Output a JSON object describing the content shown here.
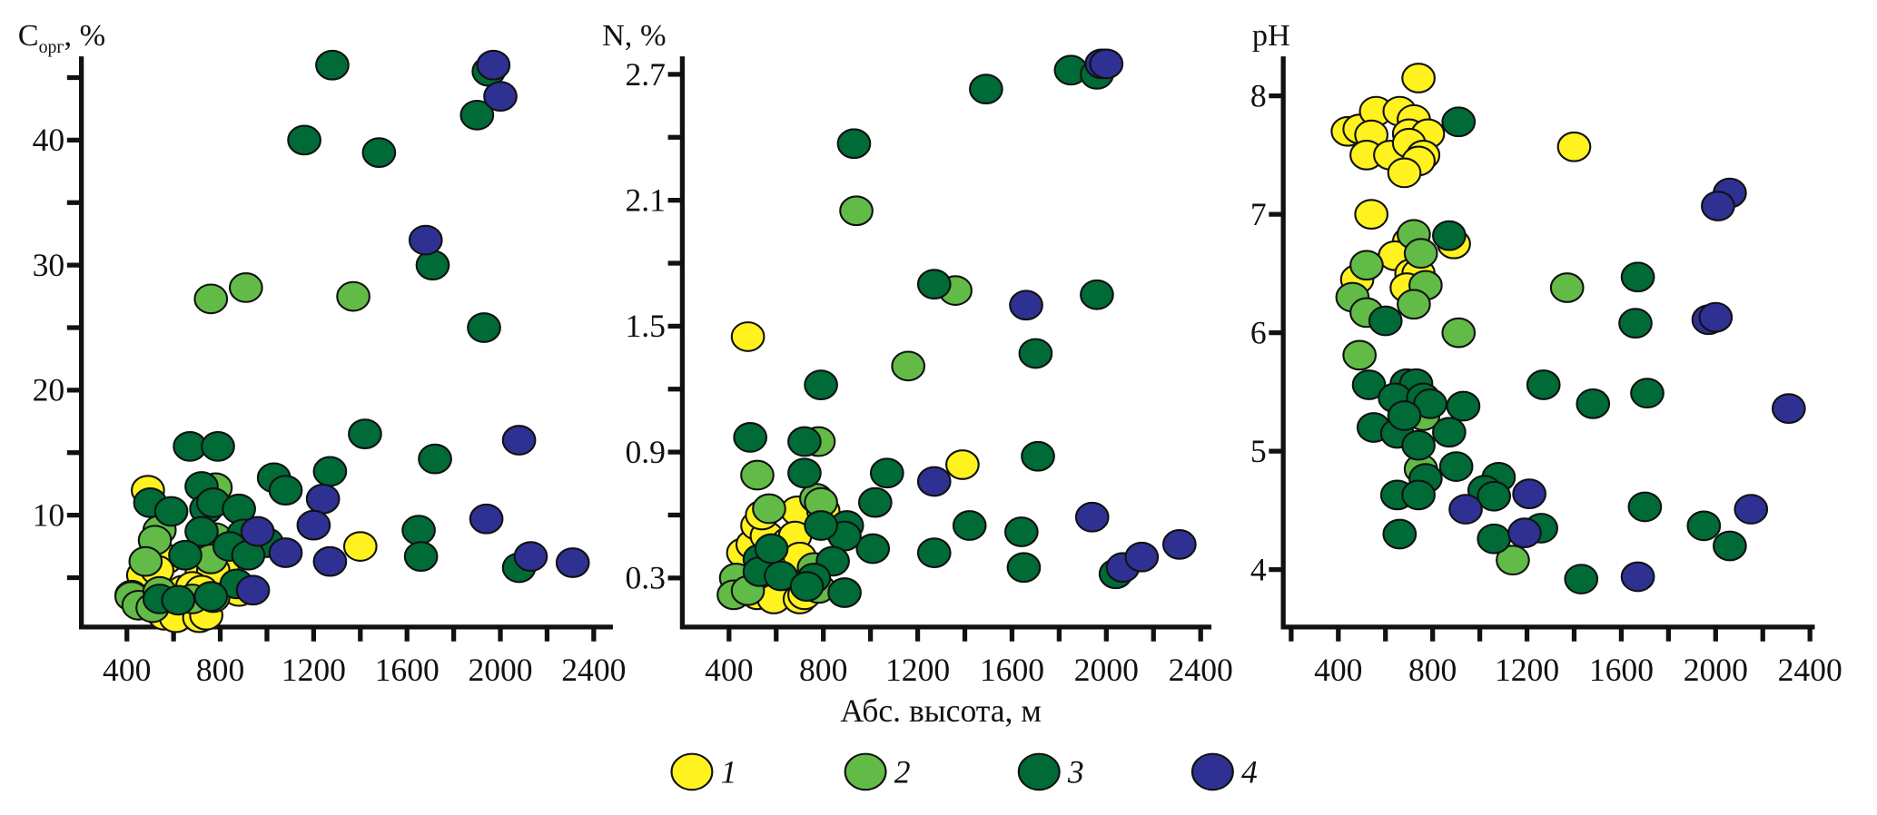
{
  "x_axis_label": "Абс. высота, м",
  "legend": [
    {
      "label": "1",
      "color": "#fff21f"
    },
    {
      "label": "2",
      "color": "#62bb47"
    },
    {
      "label": "3",
      "color": "#006b37"
    },
    {
      "label": "4",
      "color": "#2e3192"
    }
  ],
  "chart_data": [
    {
      "type": "scatter",
      "ylabel": "C",
      "ylabel_sub": "орг",
      "ylabel_suffix": ", %",
      "xticks": [
        400,
        800,
        1200,
        1600,
        2000,
        2400
      ],
      "yticks": [
        10,
        20,
        30,
        40
      ],
      "xlim": [
        200,
        2500
      ],
      "ylim": [
        -1,
        46
      ],
      "series": [
        {
          "name": "1",
          "color": "#fff21f",
          "points": [
            [
              490,
              12
            ],
            [
              1400,
              7.5
            ],
            [
              570,
              6.5
            ],
            [
              470,
              5.2
            ],
            [
              530,
              5.6
            ],
            [
              720,
              5.3
            ],
            [
              780,
              6
            ],
            [
              810,
              5.9
            ],
            [
              770,
              5.6
            ],
            [
              640,
              4
            ],
            [
              680,
              4.3
            ],
            [
              720,
              4
            ],
            [
              880,
              3.9
            ],
            [
              420,
              3.6
            ],
            [
              560,
              2
            ],
            [
              610,
              1.8
            ],
            [
              710,
              1.8
            ],
            [
              740,
              2
            ]
          ]
        },
        {
          "name": "2",
          "color": "#62bb47",
          "points": [
            [
              760,
              27.3
            ],
            [
              910,
              28.2
            ],
            [
              1370,
              27.5
            ],
            [
              780,
              12.2
            ],
            [
              540,
              8.8
            ],
            [
              520,
              8
            ],
            [
              780,
              8.2
            ],
            [
              720,
              7.1
            ],
            [
              480,
              6.3
            ],
            [
              760,
              6.5
            ],
            [
              420,
              3.5
            ],
            [
              450,
              2.8
            ],
            [
              510,
              2.6
            ],
            [
              680,
              3.3
            ],
            [
              770,
              3.4
            ],
            [
              540,
              3.9
            ]
          ]
        },
        {
          "name": "3",
          "color": "#006b37",
          "points": [
            [
              1280,
              46
            ],
            [
              1160,
              40
            ],
            [
              1480,
              39
            ],
            [
              1900,
              42
            ],
            [
              1950,
              45.5
            ],
            [
              1710,
              30
            ],
            [
              1930,
              25
            ],
            [
              1420,
              16.5
            ],
            [
              1720,
              14.5
            ],
            [
              670,
              15.5
            ],
            [
              790,
              15.5
            ],
            [
              1270,
              13.5
            ],
            [
              1030,
              13
            ],
            [
              1080,
              12
            ],
            [
              720,
              12.3
            ],
            [
              500,
              11
            ],
            [
              590,
              10.3
            ],
            [
              740,
              10.5
            ],
            [
              770,
              11
            ],
            [
              880,
              10.5
            ],
            [
              720,
              8.7
            ],
            [
              900,
              8.5
            ],
            [
              840,
              7.5
            ],
            [
              1000,
              7.8
            ],
            [
              920,
              6.8
            ],
            [
              650,
              6.8
            ],
            [
              1650,
              8.8
            ],
            [
              1660,
              6.7
            ],
            [
              2080,
              5.8
            ],
            [
              870,
              4.5
            ],
            [
              540,
              3.3
            ],
            [
              760,
              3.5
            ],
            [
              620,
              3.2
            ]
          ]
        },
        {
          "name": "4",
          "color": "#2e3192",
          "points": [
            [
              1970,
              46
            ],
            [
              2000,
              43.5
            ],
            [
              1680,
              32
            ],
            [
              2080,
              16
            ],
            [
              1240,
              11.3
            ],
            [
              1200,
              9.2
            ],
            [
              960,
              8.7
            ],
            [
              1080,
              7
            ],
            [
              1270,
              6.3
            ],
            [
              1940,
              9.7
            ],
            [
              2130,
              6.7
            ],
            [
              2310,
              6.2
            ],
            [
              940,
              4
            ]
          ]
        }
      ]
    },
    {
      "type": "scatter",
      "ylabel": "N, %",
      "xticks": [
        400,
        800,
        1200,
        1600,
        2000,
        2400
      ],
      "yticks": [
        0.3,
        0.9,
        1.5,
        2.1,
        2.7
      ],
      "xlim": [
        200,
        2500
      ],
      "ylim": [
        0.06,
        2.82
      ],
      "series": [
        {
          "name": "1",
          "color": "#fff21f",
          "points": [
            [
              480,
              1.45
            ],
            [
              1390,
              0.84
            ],
            [
              480,
              0.4
            ],
            [
              460,
              0.42
            ],
            [
              500,
              0.46
            ],
            [
              520,
              0.55
            ],
            [
              560,
              0.5
            ],
            [
              540,
              0.6
            ],
            [
              650,
              0.47
            ],
            [
              690,
              0.62
            ],
            [
              680,
              0.5
            ],
            [
              700,
              0.4
            ],
            [
              800,
              0.62
            ],
            [
              880,
              0.52
            ],
            [
              520,
              0.22
            ],
            [
              590,
              0.2
            ],
            [
              700,
              0.2
            ],
            [
              720,
              0.22
            ]
          ]
        },
        {
          "name": "2",
          "color": "#62bb47",
          "points": [
            [
              940,
              2.05
            ],
            [
              1360,
              1.67
            ],
            [
              1160,
              1.31
            ],
            [
              780,
              0.95
            ],
            [
              520,
              0.79
            ],
            [
              570,
              0.63
            ],
            [
              770,
              0.68
            ],
            [
              790,
              0.66
            ],
            [
              430,
              0.3
            ],
            [
              420,
              0.22
            ],
            [
              480,
              0.24
            ],
            [
              760,
              0.35
            ],
            [
              780,
              0.25
            ]
          ]
        },
        {
          "name": "3",
          "color": "#006b37",
          "points": [
            [
              930,
              2.37
            ],
            [
              1490,
              2.63
            ],
            [
              1850,
              2.72
            ],
            [
              1960,
              2.7
            ],
            [
              1270,
              1.7
            ],
            [
              1960,
              1.65
            ],
            [
              1700,
              1.37
            ],
            [
              790,
              1.22
            ],
            [
              490,
              0.97
            ],
            [
              720,
              0.95
            ],
            [
              720,
              0.8
            ],
            [
              1070,
              0.8
            ],
            [
              1710,
              0.88
            ],
            [
              1020,
              0.66
            ],
            [
              1420,
              0.55
            ],
            [
              1640,
              0.52
            ],
            [
              1270,
              0.42
            ],
            [
              1010,
              0.44
            ],
            [
              900,
              0.55
            ],
            [
              890,
              0.5
            ],
            [
              790,
              0.55
            ],
            [
              840,
              0.38
            ],
            [
              530,
              0.39
            ],
            [
              530,
              0.33
            ],
            [
              620,
              0.31
            ],
            [
              760,
              0.3
            ],
            [
              890,
              0.23
            ],
            [
              1650,
              0.35
            ],
            [
              2040,
              0.32
            ],
            [
              580,
              0.44
            ],
            [
              730,
              0.26
            ]
          ]
        },
        {
          "name": "4",
          "color": "#2e3192",
          "points": [
            [
              1980,
              2.75
            ],
            [
              2000,
              2.75
            ],
            [
              1660,
              1.6
            ],
            [
              1270,
              0.76
            ],
            [
              1940,
              0.59
            ],
            [
              2070,
              0.35
            ],
            [
              2150,
              0.4
            ],
            [
              2310,
              0.46
            ]
          ]
        }
      ]
    },
    {
      "type": "scatter",
      "ylabel": "pH",
      "xticks": [
        400,
        800,
        1200,
        1600,
        2000,
        2400
      ],
      "yticks": [
        4,
        5,
        6,
        7,
        8
      ],
      "xlim": [
        200,
        2500
      ],
      "ylim": [
        3.5,
        8.35
      ],
      "series": [
        {
          "name": "1",
          "color": "#fff21f",
          "points": [
            [
              740,
              8.15
            ],
            [
              440,
              7.7
            ],
            [
              490,
              7.72
            ],
            [
              560,
              7.87
            ],
            [
              660,
              7.87
            ],
            [
              720,
              7.8
            ],
            [
              540,
              7.67
            ],
            [
              700,
              7.68
            ],
            [
              780,
              7.68
            ],
            [
              520,
              7.5
            ],
            [
              620,
              7.5
            ],
            [
              700,
              7.6
            ],
            [
              760,
              7.5
            ],
            [
              740,
              7.45
            ],
            [
              680,
              7.35
            ],
            [
              1400,
              7.57
            ],
            [
              540,
              7.0
            ],
            [
              700,
              6.77
            ],
            [
              890,
              6.75
            ],
            [
              640,
              6.65
            ],
            [
              480,
              6.45
            ],
            [
              710,
              6.5
            ],
            [
              740,
              6.5
            ],
            [
              690,
              6.38
            ]
          ]
        },
        {
          "name": "2",
          "color": "#62bb47",
          "points": [
            [
              720,
              6.83
            ],
            [
              750,
              6.67
            ],
            [
              520,
              6.57
            ],
            [
              770,
              6.4
            ],
            [
              460,
              6.3
            ],
            [
              520,
              6.17
            ],
            [
              720,
              6.24
            ],
            [
              910,
              6.0
            ],
            [
              490,
              5.81
            ],
            [
              1370,
              6.38
            ],
            [
              760,
              5.3
            ],
            [
              750,
              4.85
            ],
            [
              1140,
              4.08
            ]
          ]
        },
        {
          "name": "3",
          "color": "#006b37",
          "points": [
            [
              910,
              7.78
            ],
            [
              870,
              6.82
            ],
            [
              600,
              6.1
            ],
            [
              1670,
              6.47
            ],
            [
              1660,
              6.08
            ],
            [
              530,
              5.56
            ],
            [
              690,
              5.57
            ],
            [
              730,
              5.57
            ],
            [
              640,
              5.45
            ],
            [
              760,
              5.45
            ],
            [
              790,
              5.4
            ],
            [
              930,
              5.38
            ],
            [
              1270,
              5.56
            ],
            [
              1480,
              5.4
            ],
            [
              1710,
              5.49
            ],
            [
              550,
              5.2
            ],
            [
              650,
              5.15
            ],
            [
              680,
              5.3
            ],
            [
              870,
              5.16
            ],
            [
              740,
              5.05
            ],
            [
              900,
              4.87
            ],
            [
              770,
              4.77
            ],
            [
              1080,
              4.78
            ],
            [
              1020,
              4.67
            ],
            [
              1060,
              4.62
            ],
            [
              650,
              4.63
            ],
            [
              740,
              4.63
            ],
            [
              660,
              4.3
            ],
            [
              1060,
              4.26
            ],
            [
              1260,
              4.35
            ],
            [
              1430,
              3.92
            ],
            [
              1700,
              4.53
            ],
            [
              1950,
              4.37
            ],
            [
              2060,
              4.2
            ]
          ]
        },
        {
          "name": "4",
          "color": "#2e3192",
          "points": [
            [
              2060,
              7.18
            ],
            [
              2010,
              7.07
            ],
            [
              1970,
              6.11
            ],
            [
              2000,
              6.13
            ],
            [
              2310,
              5.36
            ],
            [
              940,
              4.51
            ],
            [
              1210,
              4.64
            ],
            [
              1190,
              4.31
            ],
            [
              2150,
              4.51
            ],
            [
              1670,
              3.94
            ]
          ]
        }
      ]
    }
  ]
}
